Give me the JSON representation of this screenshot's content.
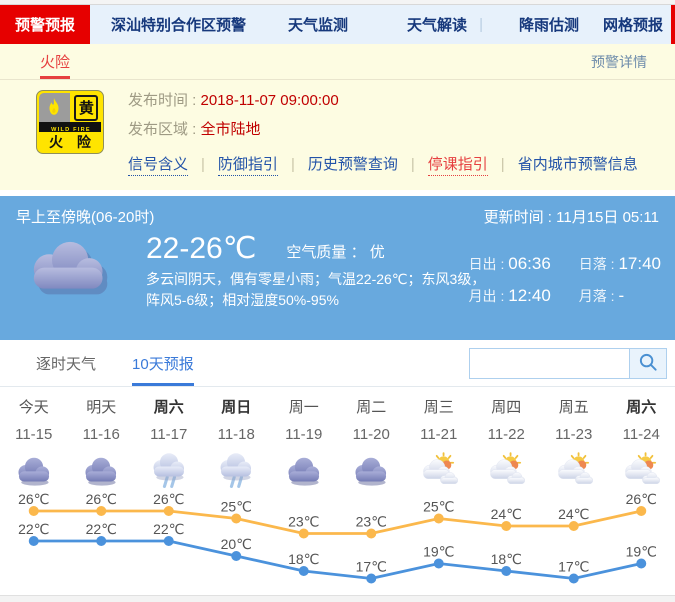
{
  "nav": {
    "active_tab": "预警预报",
    "items": [
      "深汕特别合作区预警",
      "天气监测"
    ],
    "right_links": [
      {
        "label": "天气解读",
        "sep_after": true
      },
      {
        "label": "降雨估测",
        "sep_after": false
      },
      {
        "label": "网格预报",
        "sep_after": false
      }
    ]
  },
  "subnav": {
    "title": "火险",
    "right_link": "预警详情"
  },
  "warning": {
    "icon": {
      "corner": "黄",
      "band": "WILD FIRE",
      "name": "火 险"
    },
    "fields": [
      {
        "label": "发布时间 : ",
        "value": "2018-11-07 09:00:00"
      },
      {
        "label": "发布区域 : ",
        "value": "全市陆地"
      }
    ],
    "links": [
      {
        "label": "信号含义",
        "style": "dotted"
      },
      {
        "label": "防御指引",
        "style": "dotted"
      },
      {
        "label": "历史预警查询",
        "style": "plain"
      },
      {
        "label": "停课指引",
        "style": "red"
      },
      {
        "label": "省内城市预警信息",
        "style": "plain"
      }
    ]
  },
  "current": {
    "period": "早上至傍晚(06-20时)",
    "update_label": "更新时间 : ",
    "update_value": "11月15日 05:11",
    "temp_range": "22-26℃",
    "air_label": "空气质量 ： ",
    "air_value": "优",
    "description": "多云间阴天，偶有零星小雨；气温22-26℃；东风3级，阵风5-6级；相对湿度50%-95%",
    "sun_moon": [
      {
        "label": "日出 : ",
        "value": "06:36"
      },
      {
        "label": "日落 : ",
        "value": "17:40"
      },
      {
        "label": "月出 : ",
        "value": "12:40"
      },
      {
        "label": "月落 : ",
        "value": "-"
      }
    ]
  },
  "forecast": {
    "tabs": [
      {
        "label": "逐时天气",
        "active": false
      },
      {
        "label": "10天预报",
        "active": true
      }
    ],
    "search_placeholder": ""
  },
  "chart_data": {
    "type": "line",
    "categories": [
      "今天",
      "明天",
      "周六",
      "周日",
      "周一",
      "周二",
      "周三",
      "周四",
      "周五",
      "周六"
    ],
    "dates": [
      "11-15",
      "11-16",
      "11-17",
      "11-18",
      "11-19",
      "11-20",
      "11-21",
      "11-22",
      "11-23",
      "11-24"
    ],
    "bold_days": [
      false,
      false,
      true,
      true,
      false,
      false,
      false,
      false,
      false,
      true
    ],
    "icons": [
      "cloudy",
      "cloudy",
      "rain",
      "rain",
      "cloudy",
      "cloudy",
      "partly",
      "partly",
      "partly",
      "partly"
    ],
    "unit": "℃",
    "series": [
      {
        "name": "high",
        "color": "#fbb84c",
        "values": [
          26,
          26,
          26,
          25,
          23,
          23,
          25,
          24,
          24,
          26
        ]
      },
      {
        "name": "low",
        "color": "#4b92dc",
        "values": [
          22,
          22,
          22,
          20,
          18,
          17,
          19,
          18,
          17,
          19
        ]
      }
    ],
    "legend": "none",
    "grid": false
  },
  "colors": {
    "accent_red": "#e60000",
    "nav_navy": "#16387c",
    "panel_blue": "#68a9de",
    "tab_blue": "#3a7ad9",
    "warning_yellow_bg": "#fdfce2",
    "value_red": "#c00000"
  }
}
